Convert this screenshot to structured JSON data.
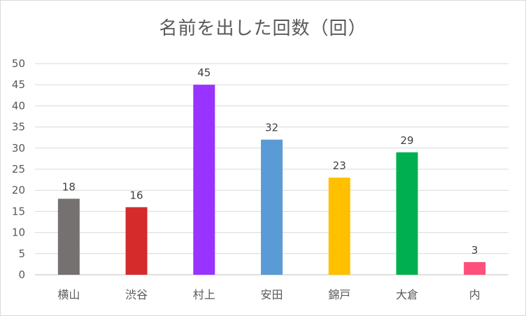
{
  "chart_data": {
    "type": "bar",
    "title": "名前を出した回数（回）",
    "xlabel": "",
    "ylabel": "",
    "ylim": [
      0,
      50
    ],
    "ytick_step": 5,
    "grid": true,
    "legend": "none",
    "categories": [
      "横山",
      "渋谷",
      "村上",
      "安田",
      "錦戸",
      "大倉",
      "内"
    ],
    "values": [
      18,
      16,
      45,
      32,
      23,
      29,
      3
    ],
    "colors": [
      "#767171",
      "#d52b2b",
      "#9933ff",
      "#5b9bd5",
      "#ffc000",
      "#00b050",
      "#ff4f7b"
    ],
    "data_labels": true
  }
}
